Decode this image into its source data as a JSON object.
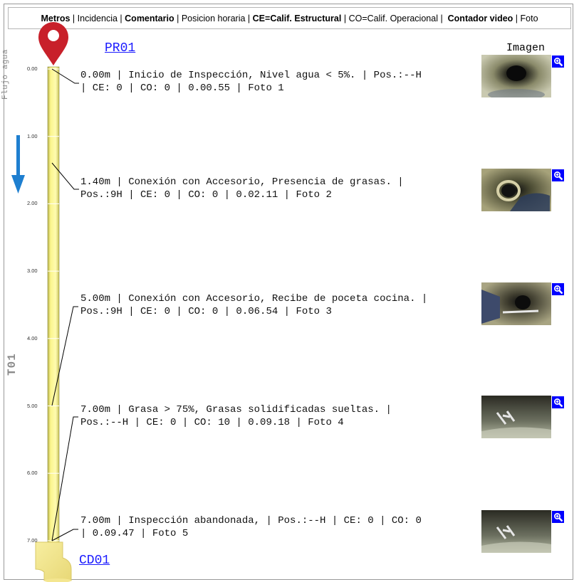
{
  "header": {
    "parts": [
      {
        "text": "Metros",
        "bold": true
      },
      {
        "text": " | ",
        "bold": false
      },
      {
        "text": "Incidencia",
        "bold": false
      },
      {
        "text": " | ",
        "bold": false
      },
      {
        "text": "Comentario",
        "bold": true
      },
      {
        "text": " | ",
        "bold": false
      },
      {
        "text": "Posicion horaria",
        "bold": false
      },
      {
        "text": " | ",
        "bold": false
      },
      {
        "text": "CE=Calif. Estructural",
        "bold": true
      },
      {
        "text": " | ",
        "bold": false
      },
      {
        "text": "CO=Calif. Operacional",
        "bold": false
      },
      {
        "text": " |  ",
        "bold": false
      },
      {
        "text": "Contador video",
        "bold": true
      },
      {
        "text": " | ",
        "bold": false
      },
      {
        "text": "Foto",
        "bold": false
      }
    ]
  },
  "start_node": "PR01",
  "end_node": "CD01",
  "image_column_title": "Imagen",
  "flow_label": "Flujo agua",
  "section_label": "T01",
  "scale": {
    "ticks": [
      "0.00",
      "1.00",
      "2.00",
      "3.00",
      "4.00",
      "5.00",
      "6.00",
      "7.00"
    ]
  },
  "entries": [
    {
      "text": "0.00m | Inicio de Inspección, Nivel agua < 5%. | Pos.:--H\n| CE: 0 | CO: 0 | 0.00.55 | Foto 1",
      "meter": 0.0,
      "photo": "Foto 1",
      "scene": "pipe-clear"
    },
    {
      "text": "1.40m | Conexión con Accesorio, Presencia de grasas. |\nPos.:9H | CE: 0 | CO: 0 | 0.02.11 | Foto 2",
      "meter": 1.4,
      "photo": "Foto 2",
      "scene": "pipe-connection"
    },
    {
      "text": "5.00m | Conexión con Accesorio, Recibe de poceta cocina. |\nPos.:9H | CE: 0 | CO: 0 | 0.06.54 | Foto 3",
      "meter": 5.0,
      "photo": "Foto 3",
      "scene": "pipe-connection-2"
    },
    {
      "text": "7.00m | Grasa > 75%, Grasas solidificadas sueltas. |\nPos.:--H | CE: 0 | CO: 10 | 0.09.18 | Foto 4",
      "meter": 7.0,
      "photo": "Foto 4",
      "scene": "pipe-grease"
    },
    {
      "text": "7.00m | Inspección abandonada, | Pos.:--H | CE: 0 | CO: 0\n| 0.09.47 | Foto 5",
      "meter": 7.0,
      "photo": "Foto 5",
      "scene": "pipe-grease"
    }
  ],
  "colors": {
    "pipe_fill": "#fbf58c",
    "pipe_edge": "#8a8a3a",
    "marker_red": "#c8202a",
    "flow_arrow": "#1e7fd0",
    "link": "#1a1aff",
    "zoom_bg": "#0000ff"
  },
  "icons": {
    "start_marker": "map-pin-icon",
    "end_marker": "pipe-elbow-icon",
    "flow": "arrow-down-icon",
    "zoom": "magnifier-plus-icon"
  }
}
